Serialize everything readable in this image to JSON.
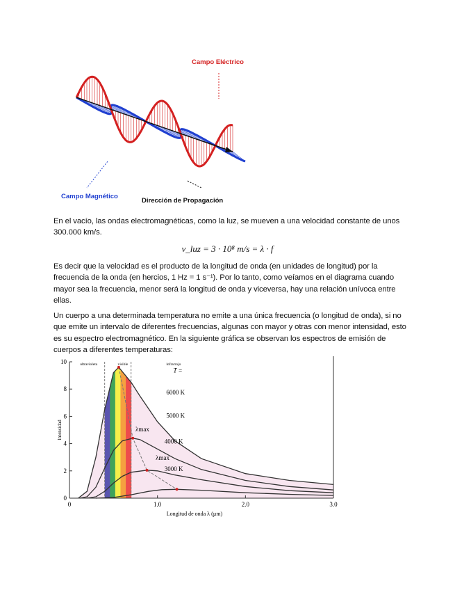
{
  "figure1": {
    "electric_label": "Campo Eléctrico",
    "magnetic_label": "Campo Magnético",
    "propagation_label": "Dirección de Propagación",
    "colors": {
      "electric": "#d42020",
      "magnetic": "#1f3fd0"
    }
  },
  "text": {
    "p1": "En el vacío, las ondas electromagnéticas, como la luz, se mueven a una velocidad constante de unos 300.000 km/s.",
    "equation": "v_luz = 3 · 10⁸ m/s = λ · f",
    "p2": "Es decir que la velocidad es el producto de la longitud de onda (en unidades de longitud) por la frecuencia de la onda (en hercios, 1 Hz = 1 s⁻¹). Por lo tanto, como veíamos en el diagrama cuando mayor sea la frecuencia, menor será la longitud de onda y viceversa, hay una relación unívoca entre ellas.",
    "p3": "Un cuerpo a una determinada temperatura no emite a una única frecuencia (o longitud de onda), si no que emite un intervalo de diferentes frecuencias, algunas con mayor y otras con menor intensidad, esto es su espectro electromagnético. En la siguiente gráfica se observan los espectros de emisión de cuerpos a diferentes temperaturas:"
  },
  "chart_data": {
    "type": "line",
    "xlabel": "Longitud de onda λ (µm)",
    "ylabel": "Intensidad",
    "xlim": [
      0,
      3.0
    ],
    "ylim": [
      0,
      10
    ],
    "xticks": [
      "0",
      "1.0",
      "2.0",
      "3.0"
    ],
    "yticks": [
      "0",
      "2",
      "4",
      "6",
      "8",
      "10"
    ],
    "regions": [
      "ultravioleta",
      "visible",
      "infrarrojo"
    ],
    "region_bounds": [
      0.4,
      0.7
    ],
    "temperature_label": "T =",
    "lambda_label": "λmax",
    "series": [
      {
        "name": "6000 K",
        "x": [
          0.1,
          0.2,
          0.3,
          0.4,
          0.5,
          0.56,
          0.7,
          0.8,
          1.0,
          1.2,
          1.5,
          2.0,
          2.5,
          3.0
        ],
        "y": [
          0,
          0.5,
          3.0,
          6.5,
          9.2,
          9.6,
          8.5,
          7.5,
          5.6,
          4.2,
          2.9,
          1.8,
          1.3,
          1.0
        ],
        "peak": [
          0.56,
          9.6
        ]
      },
      {
        "name": "5000 K",
        "x": [
          0.12,
          0.2,
          0.3,
          0.4,
          0.5,
          0.6,
          0.72,
          0.8,
          1.0,
          1.2,
          1.5,
          2.0,
          2.5,
          3.0
        ],
        "y": [
          0,
          0.1,
          0.8,
          2.2,
          3.5,
          4.2,
          4.4,
          4.3,
          3.6,
          2.9,
          2.1,
          1.3,
          0.85,
          0.6
        ],
        "peak": [
          0.72,
          4.4
        ]
      },
      {
        "name": "4000 K",
        "x": [
          0.2,
          0.3,
          0.4,
          0.5,
          0.6,
          0.7,
          0.88,
          1.0,
          1.2,
          1.5,
          2.0,
          2.5,
          3.0
        ],
        "y": [
          0,
          0.1,
          0.5,
          1.1,
          1.6,
          1.9,
          2.05,
          2.0,
          1.7,
          1.35,
          0.85,
          0.55,
          0.4
        ],
        "peak": [
          0.88,
          2.05
        ]
      },
      {
        "name": "3000 K",
        "x": [
          0.3,
          0.5,
          0.7,
          0.9,
          1.05,
          1.22,
          1.5,
          2.0,
          2.5,
          3.0
        ],
        "y": [
          0,
          0.05,
          0.25,
          0.5,
          0.62,
          0.65,
          0.58,
          0.4,
          0.28,
          0.2
        ],
        "peak": [
          1.22,
          0.65
        ]
      }
    ],
    "spectrum_colors": [
      "#5b55b0",
      "#3fa35a",
      "#f5ef4a",
      "#f5a040",
      "#ee4c4c"
    ],
    "fill_color": "#f8e6f0"
  }
}
